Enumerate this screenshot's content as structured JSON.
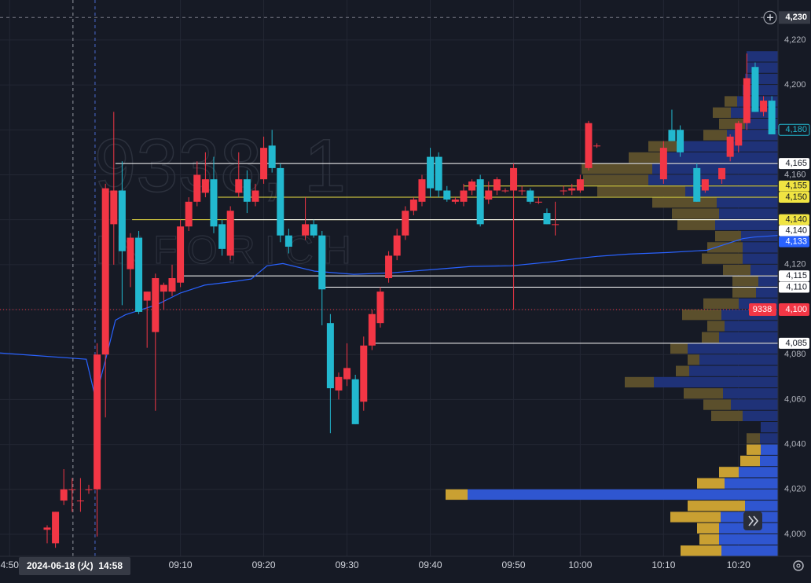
{
  "chart_data": {
    "type": "candlestick",
    "watermark": {
      "symbol": "9338, 1",
      "name": "INFORICH"
    },
    "up_color": "#f23645",
    "down_color": "#22b8cf",
    "x": [
      0,
      1,
      2,
      3,
      4,
      5,
      6,
      7,
      8,
      9,
      10,
      11,
      12,
      13,
      14,
      15,
      16,
      17,
      18,
      19,
      20,
      21,
      22,
      23,
      24,
      25,
      26,
      27,
      28,
      29,
      31,
      32,
      33,
      34,
      35,
      36,
      37,
      38,
      39,
      40,
      41,
      42,
      43,
      44,
      45,
      46,
      47,
      48,
      49,
      50,
      51,
      52,
      53,
      54,
      55,
      56,
      57,
      58,
      59,
      60,
      61,
      62,
      63,
      64,
      65,
      66,
      74,
      75,
      76,
      78,
      79,
      81,
      82,
      83,
      84,
      85,
      86,
      87
    ],
    "candles": [
      [
        4002,
        4004,
        3996,
        4003
      ],
      [
        3996,
        4010,
        3994,
        4010
      ],
      [
        4015,
        4029,
        4013,
        4020
      ],
      [
        4020,
        4025,
        4010,
        4020
      ],
      [
        4015,
        4025,
        4010,
        4015
      ],
      [
        4020,
        4022,
        4018,
        4020
      ],
      [
        4020,
        4085,
        3999,
        4080
      ],
      [
        4080,
        4156,
        4052,
        4154
      ],
      [
        4138,
        4188,
        4120,
        4153
      ],
      [
        4153,
        4166,
        4102,
        4126
      ],
      [
        4118,
        4134,
        4110,
        4132
      ],
      [
        4132,
        4135,
        4098,
        4099
      ],
      [
        4104,
        4108,
        4083,
        4108
      ],
      [
        4090,
        4116,
        4055,
        4114
      ],
      [
        4108,
        4112,
        4100,
        4111
      ],
      [
        4108,
        4120,
        4106,
        4114
      ],
      [
        4112,
        4140,
        4110,
        4137
      ],
      [
        4137,
        4150,
        4135,
        4148
      ],
      [
        4148,
        4166,
        4146,
        4160
      ],
      [
        4152,
        4170,
        4150,
        4158
      ],
      [
        4158,
        4168,
        4134,
        4137
      ],
      [
        4138,
        4140,
        4124,
        4127
      ],
      [
        4124,
        4146,
        4122,
        4144
      ],
      [
        4152,
        4170,
        4150,
        4158
      ],
      [
        4158,
        4162,
        4143,
        4148
      ],
      [
        4148,
        4156,
        4146,
        4153
      ],
      [
        4158,
        4177,
        4156,
        4172
      ],
      [
        4173,
        4180,
        4161,
        4163
      ],
      [
        4163,
        4165,
        4130,
        4133
      ],
      [
        4133,
        4136,
        4125,
        4128
      ],
      [
        4133,
        4150,
        4131,
        4138
      ],
      [
        4138,
        4140,
        4132,
        4133
      ],
      [
        4133,
        4135,
        4093,
        4109
      ],
      [
        4094,
        4098,
        4045,
        4065
      ],
      [
        4064,
        4072,
        4060,
        4070
      ],
      [
        4069,
        4085,
        4066,
        4074
      ],
      [
        4069,
        4071,
        4049,
        4049
      ],
      [
        4059,
        4088,
        4055,
        4084
      ],
      [
        4084,
        4100,
        4082,
        4098
      ],
      [
        4094,
        4110,
        4092,
        4108
      ],
      [
        4114,
        4126,
        4112,
        4124
      ],
      [
        4124,
        4136,
        4122,
        4133
      ],
      [
        4133,
        4146,
        4131,
        4144
      ],
      [
        4144,
        4150,
        4142,
        4149
      ],
      [
        4148,
        4160,
        4146,
        4158
      ],
      [
        4168,
        4172,
        4150,
        4154
      ],
      [
        4168,
        4170,
        4150,
        4153
      ],
      [
        4153,
        4155,
        4148,
        4149
      ],
      [
        4148,
        4150,
        4147,
        4149
      ],
      [
        4148,
        4156,
        4146,
        4153
      ],
      [
        4153,
        4158,
        4151,
        4157
      ],
      [
        4158,
        4160,
        4137,
        4138
      ],
      [
        4149,
        4157,
        4147,
        4153
      ],
      [
        4153,
        4159,
        4151,
        4158
      ],
      [
        4153,
        4154,
        4152,
        4153
      ],
      [
        4153,
        4165,
        4100,
        4163
      ],
      [
        4153,
        4155,
        4151,
        4153
      ],
      [
        4153,
        4154,
        4147,
        4148
      ],
      [
        4148,
        4150,
        4147,
        4148
      ],
      [
        4143,
        4145,
        4138,
        4138
      ],
      [
        4138,
        4148,
        4133,
        4138
      ],
      [
        4153,
        4155,
        4151,
        4153
      ],
      [
        4153,
        4156,
        4151,
        4154
      ],
      [
        4153,
        4160,
        4152,
        4158
      ],
      [
        4163,
        4184,
        4162,
        4183
      ],
      [
        4173,
        4174,
        4172,
        4173
      ],
      [
        4158,
        4175,
        4156,
        4172
      ],
      [
        4180,
        4189,
        4176,
        4175
      ],
      [
        4180,
        4182,
        4168,
        4170
      ],
      [
        4163,
        4165,
        4148,
        4148
      ],
      [
        4153,
        4158,
        4152,
        4158
      ],
      [
        4158,
        4163,
        4156,
        4163
      ],
      [
        4168,
        4178,
        4166,
        4177
      ],
      [
        4173,
        4184,
        4170,
        4183
      ],
      [
        4183,
        4214,
        4180,
        4203
      ],
      [
        4208,
        4210,
        4188,
        4188
      ],
      [
        4188,
        4195,
        4186,
        4193
      ],
      [
        4193,
        4195,
        4178,
        4178
      ]
    ],
    "xlim": [
      -5.66,
      87.74
    ],
    "ylim": [
      3990.2,
      4237.8
    ],
    "grid": true,
    "xticks": [
      {
        "value": -4.5,
        "label": "4:50"
      },
      {
        "value": 16,
        "label": "09:10"
      },
      {
        "value": 26,
        "label": "09:20"
      },
      {
        "value": 36,
        "label": "09:30"
      },
      {
        "value": 46,
        "label": "09:40"
      },
      {
        "value": 56,
        "label": "09:50"
      },
      {
        "value": 64,
        "label": "10:00"
      },
      {
        "value": 74,
        "label": "10:10"
      },
      {
        "value": 83,
        "label": "10:20"
      }
    ],
    "yticks": [
      {
        "value": 4000,
        "label": "4,000"
      },
      {
        "value": 4020,
        "label": "4,020"
      },
      {
        "value": 4040,
        "label": "4,040"
      },
      {
        "value": 4060,
        "label": "4,060"
      },
      {
        "value": 4080,
        "label": "4,080"
      },
      {
        "value": 4100,
        "label": "4,100"
      },
      {
        "value": 4120,
        "label": "4,120"
      },
      {
        "value": 4140,
        "label": "4,140"
      },
      {
        "value": 4160,
        "label": "4,160"
      },
      {
        "value": 4180,
        "label": "4,180"
      },
      {
        "value": 4200,
        "label": "4,200"
      },
      {
        "value": 4220,
        "label": "4,220"
      }
    ],
    "crosshair": {
      "x": 5.75,
      "x_label": "2024-06-18 (火)  14:58",
      "y": {
        "value": 4230,
        "label": "4,230"
      }
    },
    "dashed_lines": [
      3.1
    ],
    "vwap": {
      "color": "#2962ff",
      "x": [
        -5.7,
        4.7,
        5.8,
        7.1,
        8.2,
        9.4,
        13.2,
        16,
        18.9,
        22.6,
        24.5,
        26.4,
        28.3,
        32.1,
        36.8,
        41.5,
        46.2,
        50.9,
        55.7,
        60.4,
        64.2,
        66,
        69.8,
        74.5,
        79.2,
        83.5,
        84.9,
        87.7
      ],
      "values": [
        4080.7,
        4077.9,
        4060.6,
        4079,
        4095.3,
        4097.7,
        4102.2,
        4107.4,
        4110.9,
        4112.6,
        4113.6,
        4119.5,
        4120.5,
        4117.1,
        4115.7,
        4116.4,
        4117.8,
        4119.2,
        4119.5,
        4121.2,
        4123,
        4123.7,
        4124.7,
        4125.4,
        4126.4,
        4131.6,
        4132.3,
        4133
      ],
      "tag": {
        "value": 4133,
        "label": "4,133"
      }
    },
    "last": {
      "value": 4100,
      "label": "4,100",
      "symbol": "9338",
      "color": "#f23645"
    },
    "marker": {
      "value": 4180,
      "label": "4,180",
      "color": "#22b8cf"
    },
    "levels": [
      {
        "value": 4165,
        "label": "4,165",
        "color": "#ffffff",
        "start": 8.2
      },
      {
        "value": 4155,
        "label": "4,155",
        "color": "#f0e442",
        "start": 50
      },
      {
        "value": 4150,
        "label": "4,150",
        "color": "#f0e442",
        "start": 20.5
      },
      {
        "value": 4140,
        "label": "4,140",
        "color": "#f0e442",
        "start": 10.2
      },
      {
        "value": 4140,
        "label": "4,140",
        "color": "#ffffff",
        "start": 22.5
      },
      {
        "value": 4115,
        "label": "4,115",
        "color": "#ffffff",
        "start": 15.6
      },
      {
        "value": 4110,
        "label": "4,110",
        "color": "#ffffff",
        "start": 33
      },
      {
        "value": 4085,
        "label": "4,085",
        "color": "#ffffff",
        "start": 38.7
      }
    ],
    "profile": {
      "row_size": 5,
      "groups": [
        {
          "gold_color": "#5b4f2c",
          "blue_color": "#1f3278",
          "rows": [
            [
              4210,
              0,
              40
            ],
            [
              4205,
              0,
              40
            ],
            [
              4200,
              0,
              42
            ],
            [
              4195,
              0,
              45
            ],
            [
              4190,
              16,
              52
            ],
            [
              4185,
              23,
              60
            ],
            [
              4180,
              33,
              42
            ],
            [
              4175,
              30,
              65
            ],
            [
              4170,
              45,
              120
            ],
            [
              4165,
              45,
              145
            ],
            [
              4160,
              90,
              160
            ],
            [
              4155,
              83,
              165
            ],
            [
              4150,
              112,
              118
            ],
            [
              4145,
              82,
              78
            ],
            [
              4140,
              60,
              75
            ],
            [
              4135,
              48,
              80
            ],
            [
              4130,
              33,
              47
            ],
            [
              4125,
              45,
              45
            ],
            [
              4120,
              52,
              45
            ],
            [
              4115,
              35,
              35
            ],
            [
              4110,
              33,
              25
            ],
            [
              4105,
              30,
              28
            ],
            [
              4100,
              45,
              50
            ],
            [
              4095,
              50,
              72
            ],
            [
              4090,
              22,
              68
            ],
            [
              4085,
              22,
              75
            ],
            [
              4080,
              22,
              115
            ],
            [
              4075,
              15,
              100
            ],
            [
              4070,
              17,
              113
            ],
            [
              4065,
              37,
              158
            ],
            [
              4060,
              50,
              70
            ],
            [
              4055,
              35,
              60
            ],
            [
              4050,
              40,
              45
            ],
            [
              4045,
              0,
              22
            ],
            [
              4040,
              17,
              23
            ]
          ]
        },
        {
          "gold_color": "#c9a032",
          "blue_color": "#2f56d0",
          "rows": [
            [
              4035,
              18,
              22
            ],
            [
              4030,
              25,
              23
            ],
            [
              4025,
              25,
              50
            ],
            [
              4020,
              35,
              68
            ],
            [
              4015,
              28,
              395
            ],
            [
              4010,
              73,
              42
            ],
            [
              4005,
              64,
              73
            ],
            [
              4000,
              28,
              75
            ],
            [
              3995,
              25,
              75
            ],
            [
              3990,
              52,
              72
            ]
          ]
        }
      ]
    }
  }
}
